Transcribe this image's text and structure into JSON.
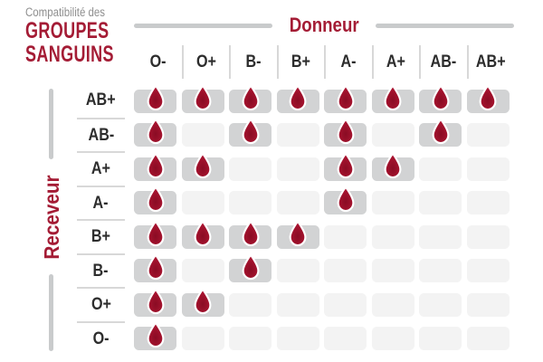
{
  "title": {
    "line1": "Compatibilité des",
    "line2": "GROUPES",
    "line3": "SANGUINS"
  },
  "axes": {
    "donor_label": "Donneur",
    "receiver_label": "Receveur"
  },
  "icons": {
    "compatible_marker": "blood-drop-icon"
  },
  "colors": {
    "accent_red": "#a41c35",
    "drop_red_outer": "#b01634",
    "drop_red_core": "#8a0c24",
    "cell_filled": "#d2d3d4",
    "cell_empty": "#f3f3f3",
    "rule_gray": "#c9cbcc",
    "divider_gray": "#d8d8d8",
    "header_text": "#2d2d2d",
    "subtitle_gray": "#8f8f8f"
  },
  "chart_data": {
    "type": "table",
    "title": "Compatibilité des GROUPES SANGUINS",
    "columns_axis_label": "Donneur",
    "rows_axis_label": "Receveur",
    "donor_types": [
      "O-",
      "O+",
      "B-",
      "B+",
      "A-",
      "A+",
      "AB-",
      "AB+"
    ],
    "receiver_types": [
      "AB+",
      "AB-",
      "A+",
      "A-",
      "B+",
      "B-",
      "O+",
      "O-"
    ],
    "cell_marker": "blood drop = compatible",
    "compatibility": {
      "AB+": [
        1,
        1,
        1,
        1,
        1,
        1,
        1,
        1
      ],
      "AB-": [
        1,
        0,
        1,
        0,
        1,
        0,
        1,
        0
      ],
      "A+": [
        1,
        1,
        0,
        0,
        1,
        1,
        0,
        0
      ],
      "A-": [
        1,
        0,
        0,
        0,
        1,
        0,
        0,
        0
      ],
      "B+": [
        1,
        1,
        1,
        1,
        0,
        0,
        0,
        0
      ],
      "B-": [
        1,
        0,
        1,
        0,
        0,
        0,
        0,
        0
      ],
      "O+": [
        1,
        1,
        0,
        0,
        0,
        0,
        0,
        0
      ],
      "O-": [
        1,
        0,
        0,
        0,
        0,
        0,
        0,
        0
      ]
    }
  }
}
